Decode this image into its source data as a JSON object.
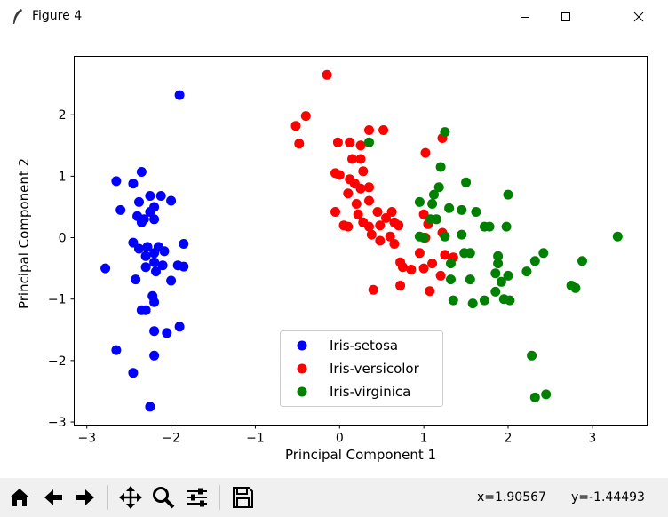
{
  "window": {
    "title": "Figure 4",
    "app_icon": "feather-icon",
    "controls": [
      "minimize-icon",
      "maximize-icon",
      "close-icon"
    ]
  },
  "toolbar": {
    "buttons": [
      "home-icon",
      "back-arrow-icon",
      "forward-arrow-icon",
      "pan-icon",
      "zoom-icon",
      "subplots-icon",
      "save-icon"
    ],
    "x_readout": "x=1.90567",
    "y_readout": "y=-1.44493"
  },
  "chart_data": {
    "type": "scatter",
    "title": "",
    "xlabel": "Principal Component 1",
    "ylabel": "Principal Component 2",
    "xlim": [
      -3.15,
      3.65
    ],
    "ylim": [
      -3.05,
      2.95
    ],
    "xticks": [
      -3,
      -2,
      -1,
      0,
      1,
      2,
      3
    ],
    "yticks": [
      -3,
      -2,
      -1,
      0,
      1,
      2
    ],
    "xtick_labels": [
      "−3",
      "−2",
      "−1",
      "0",
      "1",
      "2",
      "3"
    ],
    "ytick_labels": [
      "−3",
      "−2",
      "−1",
      "0",
      "1",
      "2"
    ],
    "grid": false,
    "legend_position": "lower-center",
    "series": [
      {
        "name": "Iris-setosa",
        "color": "#0000ff",
        "points": [
          [
            -1.9,
            2.32
          ],
          [
            -2.35,
            1.07
          ],
          [
            -2.65,
            0.92
          ],
          [
            -2.45,
            0.88
          ],
          [
            -2.25,
            0.68
          ],
          [
            -2.12,
            0.68
          ],
          [
            -2.38,
            0.58
          ],
          [
            -2.0,
            0.6
          ],
          [
            -2.2,
            0.5
          ],
          [
            -2.25,
            0.42
          ],
          [
            -2.6,
            0.45
          ],
          [
            -2.4,
            0.35
          ],
          [
            -2.32,
            0.3
          ],
          [
            -2.35,
            0.25
          ],
          [
            -2.2,
            0.3
          ],
          [
            -2.45,
            -0.08
          ],
          [
            -2.28,
            -0.15
          ],
          [
            -2.38,
            -0.18
          ],
          [
            -2.15,
            -0.15
          ],
          [
            -2.2,
            -0.25
          ],
          [
            -2.3,
            -0.3
          ],
          [
            -2.08,
            -0.22
          ],
          [
            -1.85,
            -0.1
          ],
          [
            -2.2,
            -0.4
          ],
          [
            -2.3,
            -0.48
          ],
          [
            -2.1,
            -0.45
          ],
          [
            -2.18,
            -0.55
          ],
          [
            -1.92,
            -0.45
          ],
          [
            -1.85,
            -0.47
          ],
          [
            -2.78,
            -0.5
          ],
          [
            -2.42,
            -0.68
          ],
          [
            -2.0,
            -0.7
          ],
          [
            -2.22,
            -0.95
          ],
          [
            -2.2,
            -1.05
          ],
          [
            -2.35,
            -1.18
          ],
          [
            -2.3,
            -1.18
          ],
          [
            -2.2,
            -1.52
          ],
          [
            -2.05,
            -1.55
          ],
          [
            -1.9,
            -1.45
          ],
          [
            -2.65,
            -1.83
          ],
          [
            -2.2,
            -1.92
          ],
          [
            -2.45,
            -2.2
          ],
          [
            -2.25,
            -2.75
          ]
        ]
      },
      {
        "name": "Iris-versicolor",
        "color": "#ff0000",
        "points": [
          [
            -0.15,
            2.65
          ],
          [
            -0.4,
            1.98
          ],
          [
            -0.52,
            1.82
          ],
          [
            -0.48,
            1.53
          ],
          [
            0.35,
            1.75
          ],
          [
            0.52,
            1.75
          ],
          [
            -0.02,
            1.55
          ],
          [
            0.12,
            1.55
          ],
          [
            0.25,
            1.5
          ],
          [
            1.22,
            1.62
          ],
          [
            1.02,
            1.38
          ],
          [
            0.15,
            1.28
          ],
          [
            0.25,
            1.28
          ],
          [
            -0.05,
            1.05
          ],
          [
            0.0,
            1.02
          ],
          [
            0.28,
            1.08
          ],
          [
            0.12,
            0.95
          ],
          [
            0.18,
            0.88
          ],
          [
            0.25,
            0.8
          ],
          [
            0.35,
            0.82
          ],
          [
            0.1,
            0.72
          ],
          [
            0.35,
            0.6
          ],
          [
            0.2,
            0.55
          ],
          [
            0.45,
            0.42
          ],
          [
            0.62,
            0.42
          ],
          [
            0.22,
            0.38
          ],
          [
            0.28,
            0.25
          ],
          [
            -0.05,
            0.42
          ],
          [
            0.05,
            0.2
          ],
          [
            0.1,
            0.18
          ],
          [
            0.35,
            0.18
          ],
          [
            0.48,
            0.2
          ],
          [
            0.55,
            0.32
          ],
          [
            0.65,
            0.25
          ],
          [
            0.7,
            0.2
          ],
          [
            0.38,
            0.05
          ],
          [
            0.48,
            -0.05
          ],
          [
            0.6,
            0.02
          ],
          [
            0.65,
            -0.1
          ],
          [
            1.05,
            0.22
          ],
          [
            1.0,
            0.38
          ],
          [
            1.22,
            0.08
          ],
          [
            1.02,
            0.0
          ],
          [
            0.95,
            -0.25
          ],
          [
            1.25,
            -0.28
          ],
          [
            1.35,
            -0.32
          ],
          [
            0.72,
            -0.4
          ],
          [
            0.75,
            -0.48
          ],
          [
            1.1,
            -0.42
          ],
          [
            0.85,
            -0.52
          ],
          [
            1.0,
            -0.5
          ],
          [
            1.2,
            -0.62
          ],
          [
            0.4,
            -0.85
          ],
          [
            0.72,
            -0.78
          ],
          [
            1.07,
            -0.87
          ]
        ]
      },
      {
        "name": "Iris-virginica",
        "color": "#008000",
        "points": [
          [
            0.35,
            1.55
          ],
          [
            1.25,
            1.72
          ],
          [
            1.2,
            1.15
          ],
          [
            1.18,
            0.82
          ],
          [
            1.12,
            0.7
          ],
          [
            1.5,
            0.9
          ],
          [
            2.0,
            0.7
          ],
          [
            1.1,
            0.55
          ],
          [
            0.95,
            0.58
          ],
          [
            1.3,
            0.48
          ],
          [
            1.45,
            0.45
          ],
          [
            1.62,
            0.42
          ],
          [
            1.72,
            0.18
          ],
          [
            1.78,
            0.18
          ],
          [
            1.98,
            0.18
          ],
          [
            1.08,
            0.3
          ],
          [
            1.15,
            0.3
          ],
          [
            1.0,
            0.0
          ],
          [
            0.95,
            0.02
          ],
          [
            1.25,
            0.02
          ],
          [
            1.45,
            0.05
          ],
          [
            3.3,
            0.02
          ],
          [
            1.48,
            -0.25
          ],
          [
            1.55,
            -0.25
          ],
          [
            1.88,
            -0.3
          ],
          [
            2.42,
            -0.25
          ],
          [
            1.32,
            -0.42
          ],
          [
            1.88,
            -0.42
          ],
          [
            2.32,
            -0.38
          ],
          [
            2.88,
            -0.38
          ],
          [
            1.85,
            -0.58
          ],
          [
            2.0,
            -0.62
          ],
          [
            2.22,
            -0.55
          ],
          [
            1.32,
            -0.68
          ],
          [
            1.55,
            -0.68
          ],
          [
            1.92,
            -0.72
          ],
          [
            1.85,
            -0.88
          ],
          [
            2.75,
            -0.78
          ],
          [
            2.8,
            -0.82
          ],
          [
            1.35,
            -1.02
          ],
          [
            1.58,
            -1.07
          ],
          [
            1.72,
            -1.02
          ],
          [
            1.95,
            -1.0
          ],
          [
            2.02,
            -1.02
          ],
          [
            2.28,
            -1.92
          ],
          [
            2.45,
            -2.55
          ],
          [
            2.32,
            -2.6
          ]
        ]
      }
    ]
  }
}
